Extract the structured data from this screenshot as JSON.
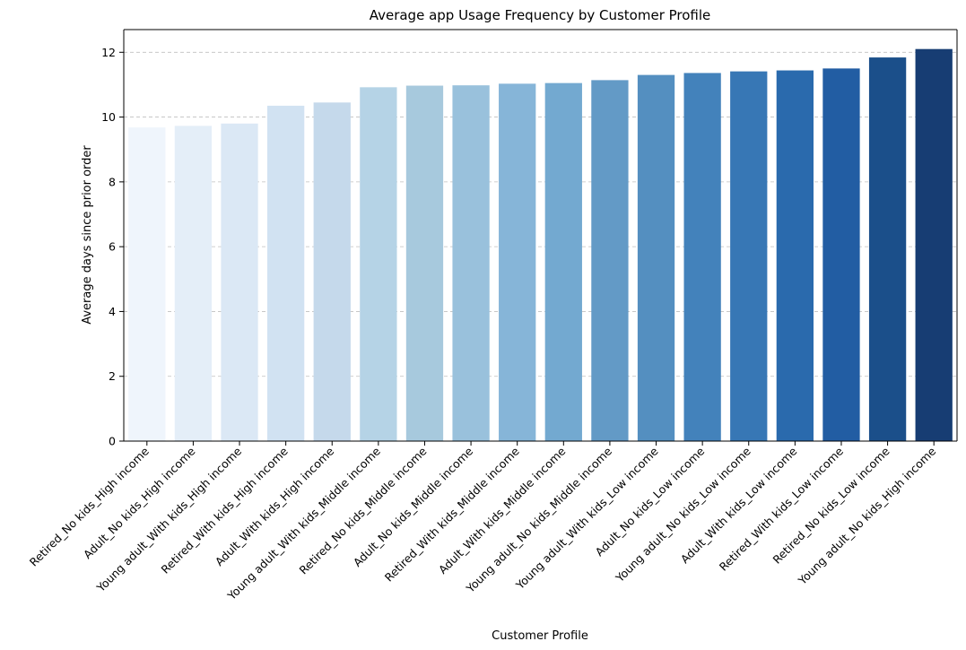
{
  "chart_data": {
    "type": "bar",
    "title": "Average app Usage Frequency by Customer Profile",
    "xlabel": "Customer Profile",
    "ylabel": "Average days since prior order",
    "ylim": [
      0,
      12.7
    ],
    "yticks": [
      0,
      2,
      4,
      6,
      8,
      10,
      12
    ],
    "grid": "y-dashed",
    "categories": [
      "Retired_No kids_High income",
      "Adult_No kids_High income",
      "Young adult_With kids_High income",
      "Retired_With kids_High income",
      "Adult_With kids_High income",
      "Young adult_With kids_Middle income",
      "Retired_No kids_Middle income",
      "Adult_No kids_Middle income",
      "Retired_With kids_Middle income",
      "Adult_With kids_Middle income",
      "Young adult_No kids_Middle income",
      "Young adult_With kids_Low income",
      "Adult_No kids_Low income",
      "Young adult_No kids_Low income",
      "Adult_With kids_Low income",
      "Retired_With kids_Low income",
      "Retired_No kids_Low income",
      "Young adult_No kids_High income"
    ],
    "values": [
      9.68,
      9.73,
      9.8,
      10.35,
      10.45,
      10.92,
      10.97,
      10.98,
      11.03,
      11.05,
      11.14,
      11.3,
      11.36,
      11.41,
      11.44,
      11.5,
      11.84,
      12.1
    ],
    "colors": [
      "#eff5fc",
      "#e4eef8",
      "#dbe8f5",
      "#d1e2f2",
      "#c5d9eb",
      "#b5d3e6",
      "#a7c9dd",
      "#99c1dc",
      "#86b5d8",
      "#73a9d0",
      "#639ac6",
      "#548fc0",
      "#4382bb",
      "#3777b5",
      "#2a6aad",
      "#225da3",
      "#1b4f8a",
      "#173d73"
    ]
  }
}
